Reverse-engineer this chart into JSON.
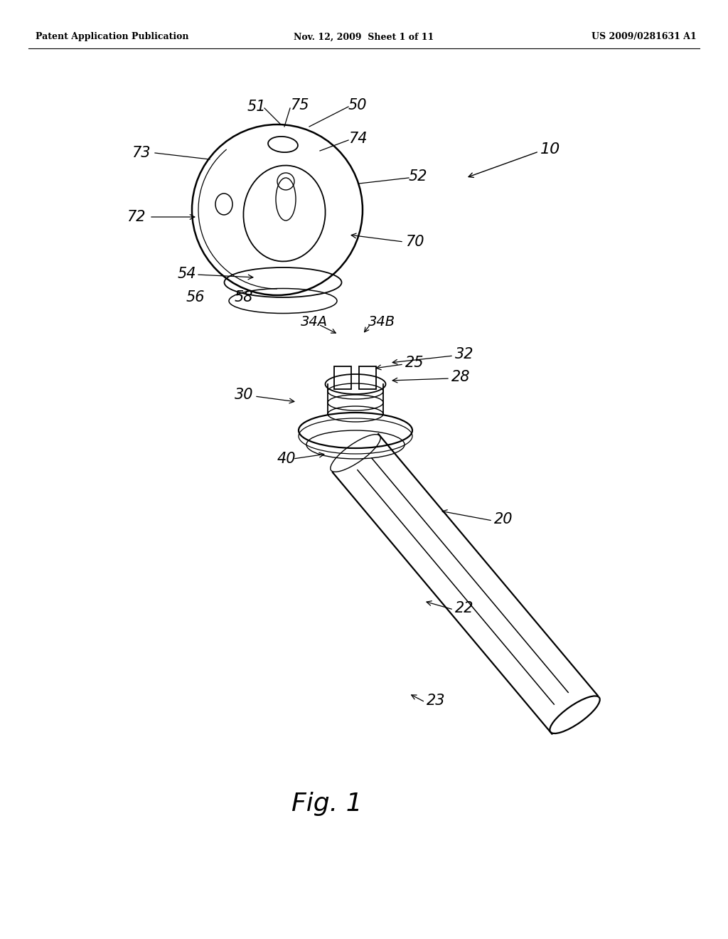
{
  "bg_color": "#ffffff",
  "header_left": "Patent Application Publication",
  "header_center": "Nov. 12, 2009  Sheet 1 of 11",
  "header_right": "US 2009/0281631 A1",
  "figure_label": "Fig. 1"
}
